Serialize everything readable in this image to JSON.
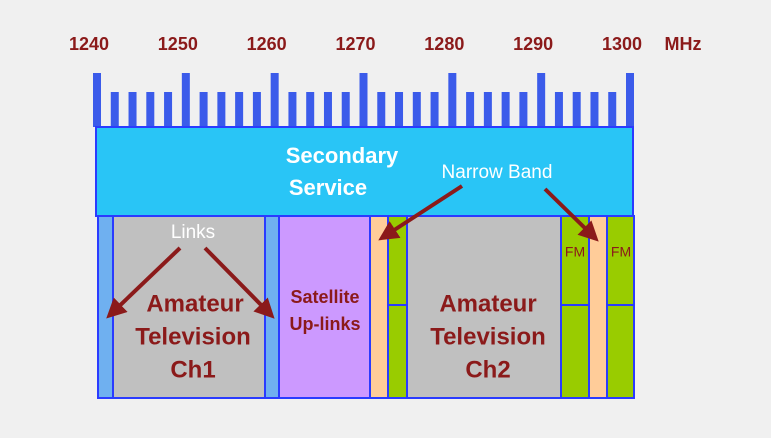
{
  "scale": {
    "labels": [
      "1240",
      "1250",
      "1260",
      "1270",
      "1280",
      "1290",
      "1300"
    ],
    "unit": "MHz"
  },
  "secondary_service": {
    "line1": "Secondary",
    "line2": "Service"
  },
  "annotations": {
    "links": "Links",
    "narrow_band": "Narrow Band"
  },
  "blocks": {
    "atv1": [
      "Amateur",
      "Television",
      "Ch1"
    ],
    "satellite": [
      "Satellite",
      "Up-links"
    ],
    "atv2": [
      "Amateur",
      "Television",
      "Ch2"
    ],
    "fm1": "FM",
    "fm2": "FM"
  }
}
